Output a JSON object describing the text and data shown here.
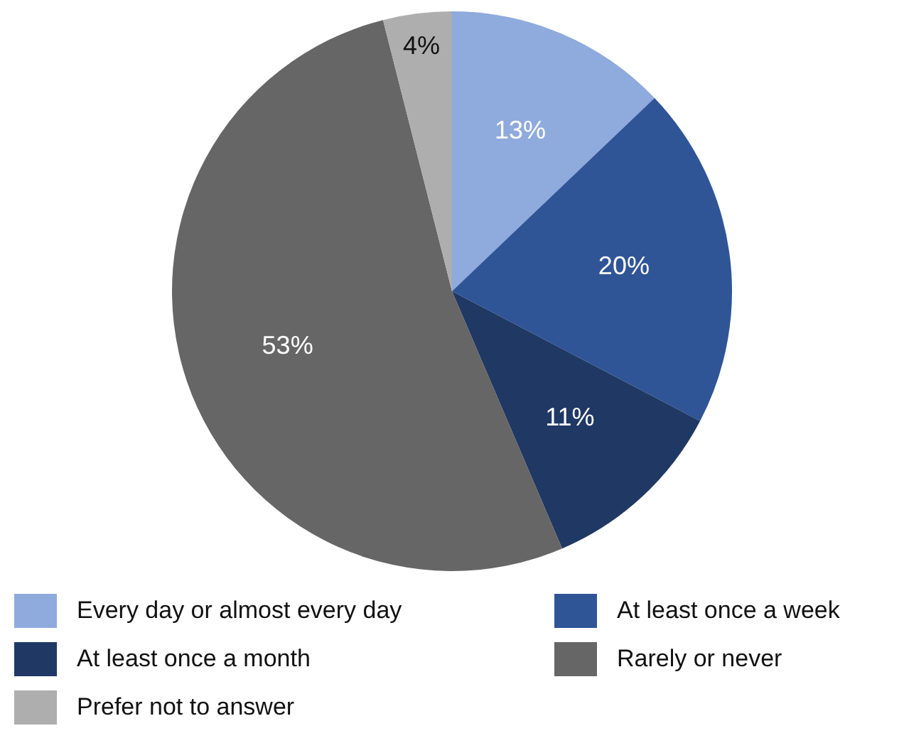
{
  "chart_data": {
    "type": "pie",
    "categories": [
      "Every day or almost every day",
      "At least once a week",
      "At least once a month",
      "Rarely or never",
      "Prefer not to answer"
    ],
    "values": [
      13,
      20,
      11,
      53,
      4
    ],
    "colors": [
      "#8faadc",
      "#2f5597",
      "#203864",
      "#666666",
      "#aeaeae"
    ],
    "value_labels": [
      "13%",
      "20%",
      "11%",
      "53%",
      "4%"
    ],
    "legend": "bottom"
  }
}
